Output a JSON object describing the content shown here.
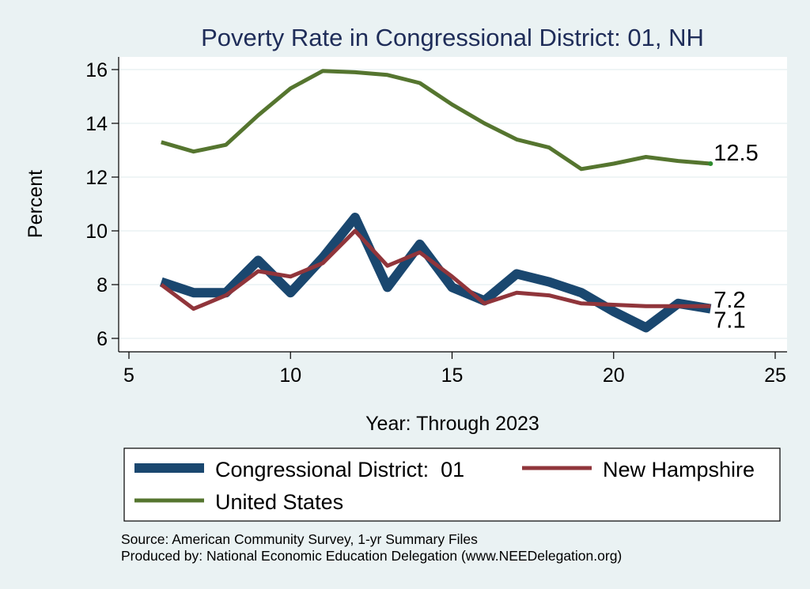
{
  "chart_data": {
    "type": "line",
    "title": "Poverty Rate in Congressional District:  01, NH",
    "xlabel": "Year: Through 2023",
    "ylabel": "Percent",
    "xlim": [
      5,
      25
    ],
    "ylim": [
      6,
      16
    ],
    "x_ticks": [
      5,
      10,
      15,
      20,
      25
    ],
    "y_ticks": [
      6,
      8,
      10,
      12,
      14,
      16
    ],
    "grid": true,
    "legend_position": "bottom",
    "x": [
      6,
      7,
      8,
      9,
      10,
      11,
      12,
      13,
      14,
      15,
      16,
      17,
      18,
      19,
      20,
      21,
      22,
      23
    ],
    "series": [
      {
        "name": "Congressional District:  01",
        "color": "#1a476f",
        "values": [
          8.1,
          7.7,
          7.7,
          8.9,
          7.7,
          9.0,
          10.5,
          7.9,
          9.5,
          7.9,
          7.4,
          8.4,
          8.1,
          7.7,
          7.0,
          6.4,
          7.3,
          7.1
        ],
        "end_label": "7.1"
      },
      {
        "name": "New Hampshire",
        "color": "#90353b",
        "values": [
          8.0,
          7.1,
          7.6,
          8.5,
          8.3,
          8.8,
          10.0,
          8.7,
          9.2,
          8.3,
          7.3,
          7.7,
          7.6,
          7.3,
          7.25,
          7.2,
          7.2,
          7.2
        ],
        "end_label": "7.2"
      },
      {
        "name": "United States",
        "color": "#55752f",
        "values": [
          13.3,
          12.95,
          13.2,
          14.3,
          15.3,
          15.95,
          15.9,
          15.8,
          15.5,
          14.7,
          14.0,
          13.4,
          13.1,
          12.3,
          12.5,
          12.75,
          12.6,
          12.5
        ],
        "end_label": "12.5"
      }
    ],
    "source_lines": [
      "Source: American Community Survey, 1-yr Summary Files",
      "Produced by: National Economic Education Delegation (www.NEEDelegation.org)"
    ]
  }
}
